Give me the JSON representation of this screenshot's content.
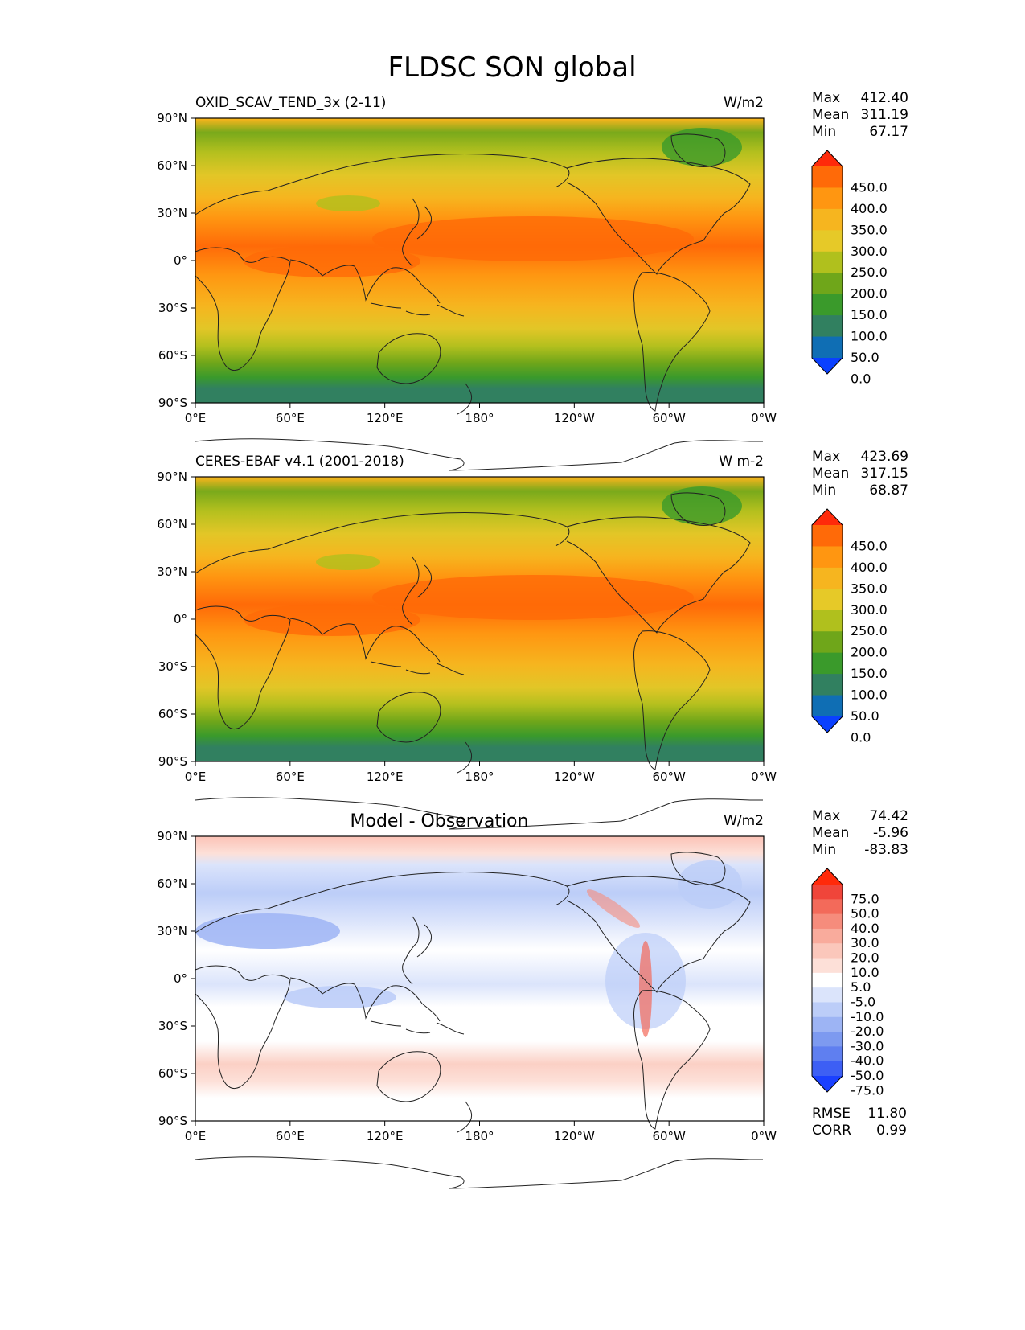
{
  "figure": {
    "title": "FLDSC SON global"
  },
  "axes": {
    "lon_ticks": [
      "0°E",
      "60°E",
      "120°E",
      "180°",
      "120°W",
      "60°W",
      "0°W"
    ],
    "lat_ticks": [
      "90°N",
      "60°N",
      "30°N",
      "0°",
      "30°S",
      "60°S",
      "90°S"
    ]
  },
  "panels": [
    {
      "left_title": "OXID_SCAV_TEND_3x (2-11)",
      "units": "W/m2",
      "stats": {
        "Max": "412.40",
        "Mean": "311.19",
        "Min": "67.17"
      },
      "colorbar": {
        "labels": [
          "450.0",
          "400.0",
          "350.0",
          "300.0",
          "250.0",
          "200.0",
          "150.0",
          "100.0",
          "50.0",
          "0.0"
        ],
        "colors": [
          "#ff2a0a",
          "#ff6a08",
          "#ff9611",
          "#f6b51f",
          "#e6c928",
          "#b0c01d",
          "#6fa61a",
          "#3a9a2b",
          "#318060",
          "#0f6eb4",
          "#0a40ff"
        ]
      }
    },
    {
      "left_title": "CERES-EBAF v4.1 (2001-2018)",
      "units": "W m-2",
      "stats": {
        "Max": "423.69",
        "Mean": "317.15",
        "Min": "68.87"
      },
      "colorbar": {
        "labels": [
          "450.0",
          "400.0",
          "350.0",
          "300.0",
          "250.0",
          "200.0",
          "150.0",
          "100.0",
          "50.0",
          "0.0"
        ],
        "colors": [
          "#ff2a0a",
          "#ff6a08",
          "#ff9611",
          "#f6b51f",
          "#e6c928",
          "#b0c01d",
          "#6fa61a",
          "#3a9a2b",
          "#318060",
          "#0f6eb4",
          "#0a40ff"
        ]
      }
    },
    {
      "center_title": "Model - Observation",
      "units": "W/m2",
      "stats": {
        "Max": "74.42",
        "Mean": "-5.96",
        "Min": "-83.83"
      },
      "colorbar": {
        "labels": [
          "75.0",
          "50.0",
          "40.0",
          "30.0",
          "20.0",
          "10.0",
          "5.0",
          "-5.0",
          "-10.0",
          "-20.0",
          "-30.0",
          "-40.0",
          "-50.0",
          "-75.0"
        ],
        "colors": [
          "#ff2a0a",
          "#f0453a",
          "#f36a5a",
          "#f68c7c",
          "#f9ab9c",
          "#fbc7bb",
          "#fde0d8",
          "#ffffff",
          "#dbe4fb",
          "#bccdf8",
          "#9db4f4",
          "#7d9af0",
          "#5f7ff0",
          "#3d5ff4",
          "#1a40ff"
        ]
      },
      "rmse": "11.80",
      "corr": "0.99"
    }
  ]
}
